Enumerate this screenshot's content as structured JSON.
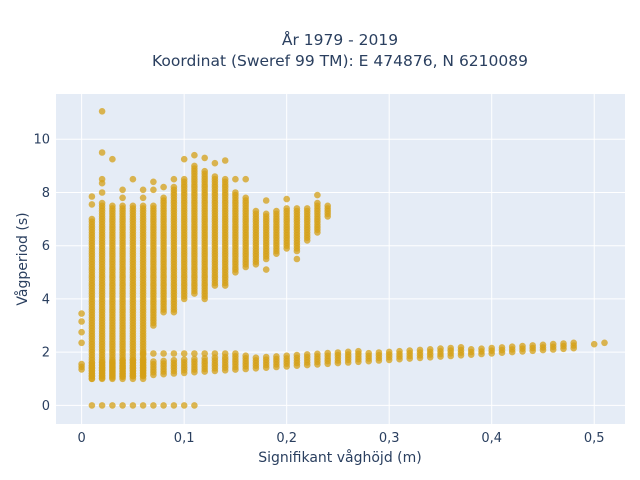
{
  "chart_data": {
    "type": "scatter",
    "title": [
      "År 1979 - 2019",
      "Koordinat (Sweref 99 TM): E 474876, N 6210089"
    ],
    "xlabel": "Signifikant våghöjd (m)",
    "ylabel": "Vågperiod (s)",
    "xlim": [
      -0.025,
      0.53
    ],
    "ylim": [
      -0.7,
      11.7
    ],
    "x_ticks": [
      0,
      0.1,
      0.2,
      0.3,
      0.4,
      0.5
    ],
    "x_tick_labels": [
      "0",
      "0,1",
      "0,2",
      "0,3",
      "0,4",
      "0,5"
    ],
    "y_ticks": [
      0,
      2,
      4,
      6,
      8,
      10
    ],
    "y_tick_labels": [
      "0",
      "2",
      "4",
      "6",
      "8",
      "10"
    ],
    "grid": true,
    "legend": "none",
    "marker_color": "#D4A017",
    "plot_bgcolor": "#E5ECF6",
    "columns": [
      {
        "x": 0.0,
        "ymin": 1.35,
        "ymax": 1.55,
        "extra": [
          2.35,
          2.75,
          3.15,
          3.45
        ]
      },
      {
        "x": 0.01,
        "ymin": 1.0,
        "ymax": 7.0,
        "extra": [
          7.55,
          7.85
        ]
      },
      {
        "x": 0.02,
        "ymin": 1.0,
        "ymax": 7.6,
        "extra": [
          8.0,
          8.35,
          8.5,
          9.5,
          11.05
        ]
      },
      {
        "x": 0.03,
        "ymin": 1.0,
        "ymax": 7.5,
        "extra": [
          9.25
        ]
      },
      {
        "x": 0.04,
        "ymin": 1.0,
        "ymax": 7.5,
        "extra": [
          7.8,
          8.1
        ]
      },
      {
        "x": 0.05,
        "ymin": 1.0,
        "ymax": 7.5,
        "extra": [
          8.5
        ]
      },
      {
        "x": 0.06,
        "ymin": 1.0,
        "ymax": 7.5,
        "extra": [
          7.8,
          8.1
        ]
      },
      {
        "x": 0.07,
        "ymin": 3.0,
        "ymax": 7.5,
        "extra": [
          8.1,
          8.4
        ]
      },
      {
        "x": 0.08,
        "ymin": 3.5,
        "ymax": 7.8,
        "extra": [
          8.2
        ]
      },
      {
        "x": 0.09,
        "ymin": 3.5,
        "ymax": 8.2,
        "extra": [
          8.5
        ]
      },
      {
        "x": 0.1,
        "ymin": 4.0,
        "ymax": 8.5,
        "extra": [
          9.25
        ]
      },
      {
        "x": 0.11,
        "ymin": 4.2,
        "ymax": 9.0,
        "extra": [
          9.4
        ]
      },
      {
        "x": 0.12,
        "ymin": 4.0,
        "ymax": 8.8,
        "extra": [
          9.3
        ]
      },
      {
        "x": 0.13,
        "ymin": 4.5,
        "ymax": 8.6,
        "extra": [
          9.1
        ]
      },
      {
        "x": 0.14,
        "ymin": 4.5,
        "ymax": 8.5,
        "extra": [
          9.2
        ]
      },
      {
        "x": 0.15,
        "ymin": 5.0,
        "ymax": 8.0,
        "extra": [
          8.5
        ]
      },
      {
        "x": 0.16,
        "ymin": 5.2,
        "ymax": 7.8,
        "extra": [
          8.5
        ]
      },
      {
        "x": 0.17,
        "ymin": 5.3,
        "ymax": 7.3,
        "extra": []
      },
      {
        "x": 0.18,
        "ymin": 5.5,
        "ymax": 7.2,
        "extra": [
          5.1,
          7.7
        ]
      },
      {
        "x": 0.19,
        "ymin": 5.7,
        "ymax": 7.3,
        "extra": []
      },
      {
        "x": 0.2,
        "ymin": 5.9,
        "ymax": 7.4,
        "extra": [
          7.75
        ]
      },
      {
        "x": 0.21,
        "ymin": 5.8,
        "ymax": 7.4,
        "extra": [
          5.5
        ]
      },
      {
        "x": 0.22,
        "ymin": 6.2,
        "ymax": 7.4,
        "extra": []
      },
      {
        "x": 0.23,
        "ymin": 6.5,
        "ymax": 7.6,
        "extra": [
          7.9
        ]
      },
      {
        "x": 0.24,
        "ymin": 7.1,
        "ymax": 7.5,
        "extra": []
      }
    ],
    "lower_band": {
      "x_start": 0.01,
      "x_end": 0.48,
      "x_step": 0.01,
      "ymin_start": 1.0,
      "ymin_end": 2.15,
      "ymax_start": 1.65,
      "ymax_end": 2.35
    },
    "dots_at_2": {
      "x": [
        0.06,
        0.07,
        0.08,
        0.09,
        0.1,
        0.11,
        0.12,
        0.13,
        0.14,
        0.15
      ],
      "y": 1.95
    },
    "dots_at_0": {
      "x": [
        0.01,
        0.02,
        0.03,
        0.04,
        0.05,
        0.06,
        0.07,
        0.08,
        0.09,
        0.1,
        0.11
      ],
      "y": 0.0
    },
    "outliers": [
      {
        "x": 0.5,
        "y": 2.3
      },
      {
        "x": 0.51,
        "y": 2.35
      }
    ]
  }
}
